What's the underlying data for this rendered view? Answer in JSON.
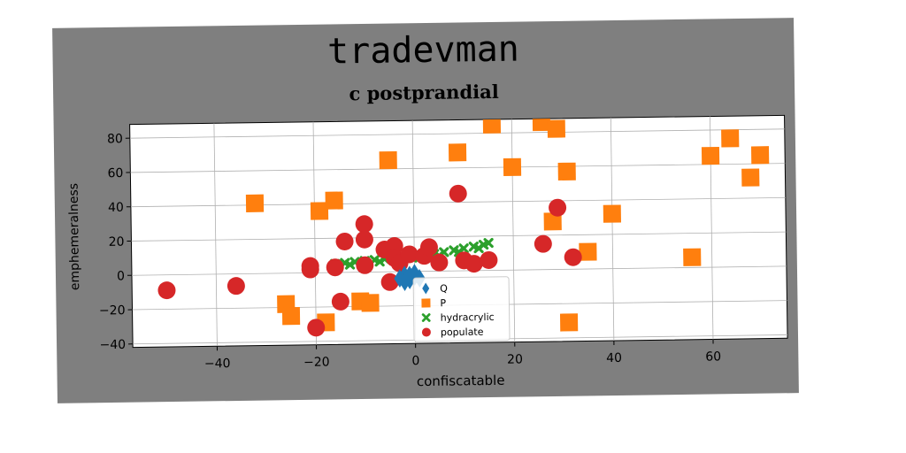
{
  "chart_data": {
    "type": "scatter",
    "suptitle": "tradevman",
    "title": "c postprandial",
    "xlabel": "confiscatable",
    "ylabel": "emphemeralness",
    "xlim": [
      -57,
      75
    ],
    "ylim": [
      -42,
      88
    ],
    "xticks": [
      -40,
      -20,
      0,
      20,
      40,
      60
    ],
    "yticks": [
      -40,
      -20,
      0,
      20,
      40,
      60,
      80
    ],
    "grid": true,
    "legend_position": "lower center",
    "series": [
      {
        "name": "Q",
        "marker": "diamond",
        "color": "#1f77b4",
        "points": [
          [
            -3,
            -4
          ],
          [
            -2,
            -2
          ],
          [
            -1,
            -5
          ],
          [
            0,
            -3
          ],
          [
            -2,
            -6
          ],
          [
            1,
            -4
          ],
          [
            0,
            -1
          ],
          [
            -1,
            -2
          ]
        ]
      },
      {
        "name": "P",
        "marker": "square",
        "color": "#ff7f0e",
        "points": [
          [
            -32,
            41
          ],
          [
            -26,
            -18
          ],
          [
            -25,
            -25
          ],
          [
            -19,
            36
          ],
          [
            -18,
            -29
          ],
          [
            -16,
            42
          ],
          [
            -11,
            -17
          ],
          [
            -9,
            -18
          ],
          [
            -5,
            65
          ],
          [
            9,
            69
          ],
          [
            16,
            85
          ],
          [
            20,
            60
          ],
          [
            26,
            86
          ],
          [
            28,
            28
          ],
          [
            29,
            82
          ],
          [
            31,
            57
          ],
          [
            31,
            -31
          ],
          [
            35,
            10
          ],
          [
            40,
            32
          ],
          [
            56,
            6
          ],
          [
            60,
            65
          ],
          [
            64,
            75
          ],
          [
            68,
            52
          ],
          [
            70,
            65
          ]
        ]
      },
      {
        "name": "hydracrylic",
        "marker": "x",
        "color": "#2ca02c",
        "points": [
          [
            -16,
            5
          ],
          [
            -14,
            5.5
          ],
          [
            -12,
            6
          ],
          [
            -10,
            6.5
          ],
          [
            -8,
            7
          ],
          [
            -6,
            7.5
          ],
          [
            -4,
            8
          ],
          [
            -2,
            8.5
          ],
          [
            0,
            9
          ],
          [
            2,
            9.5
          ],
          [
            4,
            10
          ],
          [
            6,
            11
          ],
          [
            8,
            12
          ],
          [
            10,
            13
          ],
          [
            12,
            14
          ],
          [
            14,
            15
          ],
          [
            15,
            16
          ],
          [
            -13,
            4.5
          ],
          [
            -7,
            6
          ],
          [
            -3,
            7
          ],
          [
            1,
            8
          ],
          [
            5,
            9
          ],
          [
            9,
            11
          ],
          [
            13,
            13
          ]
        ]
      },
      {
        "name": "populate",
        "marker": "circle",
        "color": "#d62728",
        "points": [
          [
            -50,
            -9
          ],
          [
            -36,
            -7
          ],
          [
            -21,
            4
          ],
          [
            -21,
            2
          ],
          [
            -20,
            -32
          ],
          [
            -16,
            3
          ],
          [
            -15,
            -17
          ],
          [
            -14,
            18
          ],
          [
            -10,
            28
          ],
          [
            -10,
            19
          ],
          [
            -10,
            4
          ],
          [
            -6,
            13
          ],
          [
            -5,
            -6
          ],
          [
            -4,
            15
          ],
          [
            -4,
            8
          ],
          [
            -3,
            5
          ],
          [
            -1,
            10
          ],
          [
            2,
            9
          ],
          [
            3,
            14
          ],
          [
            5,
            5
          ],
          [
            9,
            45
          ],
          [
            10,
            6
          ],
          [
            12,
            4
          ],
          [
            15,
            6
          ],
          [
            26,
            15
          ],
          [
            29,
            36
          ],
          [
            32,
            7
          ]
        ]
      }
    ]
  }
}
